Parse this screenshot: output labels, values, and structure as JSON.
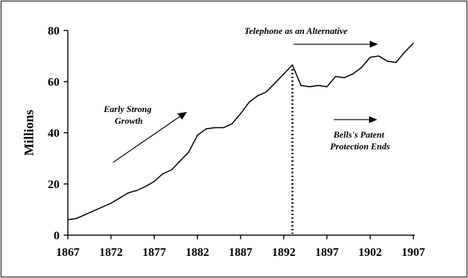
{
  "chart_data": {
    "type": "line",
    "title": "",
    "xlabel": "",
    "ylabel": "Millions",
    "xlim": [
      1867,
      1907
    ],
    "ylim": [
      0,
      80
    ],
    "x_ticks": [
      "1867",
      "1872",
      "1877",
      "1882",
      "1887",
      "1892",
      "1897",
      "1902",
      "1907"
    ],
    "y_ticks": [
      "0",
      "20",
      "40",
      "60",
      "80"
    ],
    "grid": false,
    "legend": "none",
    "line_color": "#000000",
    "series": [
      {
        "x": [
          1867,
          1868,
          1869,
          1870,
          1871,
          1872,
          1873,
          1874,
          1875,
          1876,
          1877,
          1878,
          1879,
          1880,
          1881,
          1882,
          1883,
          1884,
          1885,
          1886,
          1887,
          1888,
          1889,
          1890,
          1891,
          1892,
          1893,
          1894,
          1895,
          1896,
          1897,
          1898,
          1899,
          1900,
          1901,
          1902,
          1903,
          1904,
          1905,
          1906,
          1907
        ],
        "values": [
          6,
          6.5,
          8,
          9.5,
          11,
          12.5,
          14.5,
          16.5,
          17.5,
          19,
          21,
          24,
          25.5,
          29,
          32.5,
          39,
          41.5,
          42,
          42,
          43.5,
          47.5,
          52,
          54.5,
          56,
          59.5,
          63,
          66.5,
          58.5,
          58,
          58.5,
          58,
          62,
          61.5,
          63,
          65.5,
          69.5,
          70,
          68,
          67.5,
          71.5,
          75
        ]
      }
    ],
    "reference_line": {
      "x": 1893
    },
    "annotations": [
      {
        "lines": [
          "Early Strong",
          "Growth"
        ]
      },
      {
        "lines": [
          "Telephone as an Alternative"
        ]
      },
      {
        "lines": [
          "Bells's Patent",
          "Protection Ends"
        ]
      }
    ]
  }
}
